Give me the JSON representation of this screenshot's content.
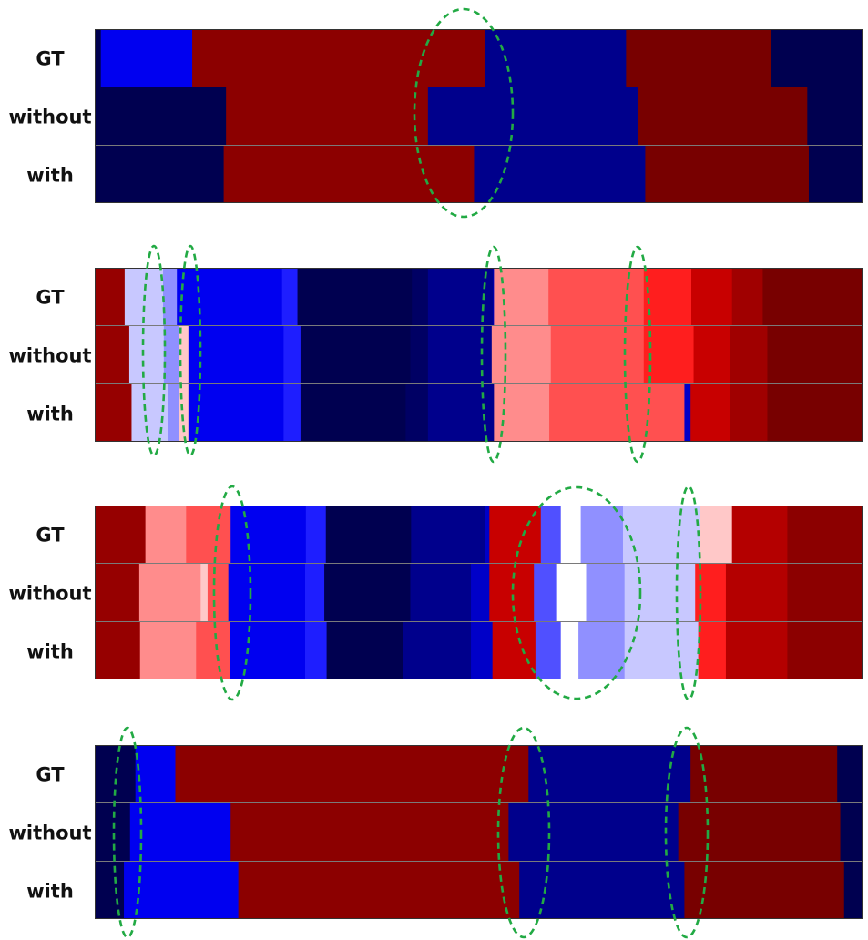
{
  "row_labels": [
    "GT",
    "without",
    "with"
  ],
  "panels": [
    {
      "rows": [
        [
          [
            "#000050",
            0,
            0.008
          ],
          [
            "#0000f0",
            0.008,
            0.127
          ],
          [
            "#8c0000",
            0.127,
            0.508
          ],
          [
            "#00008c",
            0.508,
            0.692
          ],
          [
            "#780000",
            0.692,
            0.881
          ],
          [
            "#000050",
            0.881,
            1
          ]
        ],
        [
          [
            "#000050",
            0,
            0.171
          ],
          [
            "#8c0000",
            0.171,
            0.434
          ],
          [
            "#00008c",
            0.434,
            0.708
          ],
          [
            "#780000",
            0.708,
            0.928
          ],
          [
            "#000050",
            0.928,
            1
          ]
        ],
        [
          [
            "#000050",
            0,
            0.168
          ],
          [
            "#8c0000",
            0.168,
            0.494
          ],
          [
            "#00008c",
            0.494,
            0.717
          ],
          [
            "#780000",
            0.717,
            0.93
          ],
          [
            "#000050",
            0.93,
            1
          ]
        ]
      ]
    },
    {
      "rows": [
        [
          [
            "#960000",
            0,
            0.039
          ],
          [
            "#c8c8ff",
            0.039,
            0.089
          ],
          [
            "#9090ff",
            0.089,
            0.107
          ],
          [
            "#0000f0",
            0.107,
            0.244
          ],
          [
            "#1e1eff",
            0.244,
            0.264
          ],
          [
            "#000050",
            0.264,
            0.413
          ],
          [
            "#000064",
            0.413,
            0.434
          ],
          [
            "#00008c",
            0.434,
            0.519
          ],
          [
            "#0000c8",
            0.519,
            0.52
          ],
          [
            "#ff8c8c",
            0.52,
            0.591
          ],
          [
            "#ff5050",
            0.591,
            0.715
          ],
          [
            "#ff1e1e",
            0.715,
            0.777
          ],
          [
            "#c80000",
            0.777,
            0.83
          ],
          [
            "#a00000",
            0.83,
            0.87
          ],
          [
            "#780000",
            0.87,
            1
          ]
        ],
        [
          [
            "#960000",
            0,
            0.045
          ],
          [
            "#c8c8ff",
            0.045,
            0.09
          ],
          [
            "#9090ff",
            0.09,
            0.11
          ],
          [
            "#ffc8c8",
            0.11,
            0.122
          ],
          [
            "#0000f0",
            0.122,
            0.246
          ],
          [
            "#1e1eff",
            0.246,
            0.268
          ],
          [
            "#000050",
            0.268,
            0.411
          ],
          [
            "#000064",
            0.411,
            0.434
          ],
          [
            "#00008c",
            0.434,
            0.517
          ],
          [
            "#ff8c8c",
            0.517,
            0.594
          ],
          [
            "#ff5050",
            0.594,
            0.715
          ],
          [
            "#ff1e1e",
            0.715,
            0.78
          ],
          [
            "#c80000",
            0.78,
            0.828
          ],
          [
            "#a00000",
            0.828,
            0.876
          ],
          [
            "#780000",
            0.876,
            1
          ]
        ],
        [
          [
            "#960000",
            0,
            0.048
          ],
          [
            "#c8c8ff",
            0.048,
            0.095
          ],
          [
            "#9090ff",
            0.095,
            0.11
          ],
          [
            "#ffc8c8",
            0.11,
            0.122
          ],
          [
            "#0000f0",
            0.122,
            0.246
          ],
          [
            "#1e1eff",
            0.246,
            0.268
          ],
          [
            "#000050",
            0.268,
            0.405
          ],
          [
            "#000064",
            0.405,
            0.434
          ],
          [
            "#00008c",
            0.434,
            0.52
          ],
          [
            "#ff8c8c",
            0.52,
            0.592
          ],
          [
            "#ff5050",
            0.592,
            0.768
          ],
          [
            "#0000c8",
            0.768,
            0.776
          ],
          [
            "#c80000",
            0.776,
            0.828
          ],
          [
            "#a00000",
            0.828,
            0.876
          ],
          [
            "#780000",
            0.876,
            1
          ]
        ]
      ]
    },
    {
      "rows": [
        [
          [
            "#960000",
            0,
            0.066
          ],
          [
            "#ff8c8c",
            0.066,
            0.119
          ],
          [
            "#ff5050",
            0.119,
            0.177
          ],
          [
            "#0000f0",
            0.177,
            0.275
          ],
          [
            "#1e1eff",
            0.275,
            0.301
          ],
          [
            "#000050",
            0.301,
            0.412
          ],
          [
            "#00008c",
            0.412,
            0.508
          ],
          [
            "#0000c8",
            0.508,
            0.514
          ],
          [
            "#c80000",
            0.514,
            0.581
          ],
          [
            "#5050ff",
            0.581,
            0.607
          ],
          [
            "#ffffff",
            0.607,
            0.633
          ],
          [
            "#9090ff",
            0.633,
            0.688
          ],
          [
            "#c8c8ff",
            0.688,
            0.788
          ],
          [
            "#ffc8c8",
            0.788,
            0.83
          ],
          [
            "#b40000",
            0.83,
            0.902
          ],
          [
            "#8c0000",
            0.902,
            1
          ]
        ],
        [
          [
            "#960000",
            0,
            0.058
          ],
          [
            "#ff8c8c",
            0.058,
            0.138
          ],
          [
            "#ffc8c8",
            0.138,
            0.147
          ],
          [
            "#ff5050",
            0.147,
            0.174
          ],
          [
            "#0000f0",
            0.174,
            0.274
          ],
          [
            "#1e1eff",
            0.274,
            0.299
          ],
          [
            "#000050",
            0.299,
            0.411
          ],
          [
            "#00008c",
            0.411,
            0.49
          ],
          [
            "#0000c8",
            0.49,
            0.514
          ],
          [
            "#c80000",
            0.514,
            0.572
          ],
          [
            "#5050ff",
            0.572,
            0.601
          ],
          [
            "#ffffff",
            0.601,
            0.64
          ],
          [
            "#9090ff",
            0.64,
            0.69
          ],
          [
            "#c8c8ff",
            0.69,
            0.782
          ],
          [
            "#ff1e1e",
            0.782,
            0.822
          ],
          [
            "#b40000",
            0.822,
            0.902
          ],
          [
            "#8c0000",
            0.902,
            1
          ]
        ],
        [
          [
            "#960000",
            0,
            0.059
          ],
          [
            "#ff8c8c",
            0.059,
            0.132
          ],
          [
            "#ff5050",
            0.132,
            0.176
          ],
          [
            "#0000f0",
            0.176,
            0.274
          ],
          [
            "#1e1eff",
            0.274,
            0.302
          ],
          [
            "#000050",
            0.302,
            0.401
          ],
          [
            "#00008c",
            0.401,
            0.49
          ],
          [
            "#0000c8",
            0.49,
            0.518
          ],
          [
            "#c80000",
            0.518,
            0.574
          ],
          [
            "#5050ff",
            0.574,
            0.607
          ],
          [
            "#ffffff",
            0.607,
            0.63
          ],
          [
            "#9090ff",
            0.63,
            0.69
          ],
          [
            "#c8c8ff",
            0.69,
            0.786
          ],
          [
            "#ff1e1e",
            0.786,
            0.822
          ],
          [
            "#b40000",
            0.822,
            0.902
          ],
          [
            "#8c0000",
            0.902,
            1
          ]
        ]
      ]
    },
    {
      "rows": [
        [
          [
            "#000050",
            0,
            0.053
          ],
          [
            "#0000f0",
            0.053,
            0.105
          ],
          [
            "#8c0000",
            0.105,
            0.565
          ],
          [
            "#00008c",
            0.565,
            0.776
          ],
          [
            "#780000",
            0.776,
            0.967
          ],
          [
            "#000050",
            0.967,
            1
          ]
        ],
        [
          [
            "#000050",
            0,
            0.046
          ],
          [
            "#0000f0",
            0.046,
            0.177
          ],
          [
            "#8c0000",
            0.177,
            0.539
          ],
          [
            "#00008c",
            0.539,
            0.76
          ],
          [
            "#780000",
            0.76,
            0.971
          ],
          [
            "#000050",
            0.971,
            1
          ]
        ],
        [
          [
            "#000050",
            0,
            0.038
          ],
          [
            "#0000f0",
            0.038,
            0.187
          ],
          [
            "#8c0000",
            0.187,
            0.553
          ],
          [
            "#00008c",
            0.553,
            0.768
          ],
          [
            "#780000",
            0.768,
            0.976
          ],
          [
            "#000050",
            0.976,
            1
          ]
        ]
      ]
    }
  ],
  "annotations": {
    "color": "#22aa44",
    "style": "dashed ellipse"
  }
}
